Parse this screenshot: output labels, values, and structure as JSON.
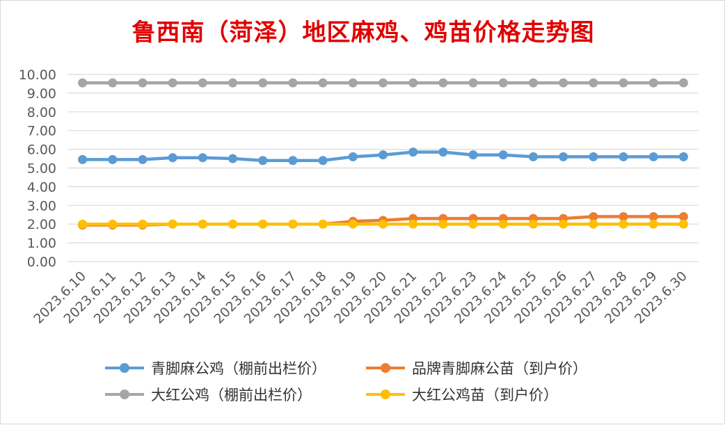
{
  "chart_data": {
    "type": "line",
    "title": "鲁西南（菏泽）地区麻鸡、鸡苗价格走势图",
    "xlabel": "",
    "ylabel": "",
    "ylim": [
      0,
      10
    ],
    "yticks": [
      "0.00",
      "1.00",
      "2.00",
      "3.00",
      "4.00",
      "5.00",
      "6.00",
      "7.00",
      "8.00",
      "9.00",
      "10.00"
    ],
    "grid": true,
    "legend_position": "bottom",
    "categories": [
      "2023.6.10",
      "2023.6.11",
      "2023.6.12",
      "2023.6.13",
      "2023.6.14",
      "2023.6.15",
      "2023.6.16",
      "2023.6.17",
      "2023.6.18",
      "2023.6.19",
      "2023.6.20",
      "2023.6.21",
      "2023.6.22",
      "2023.6.23",
      "2023.6.24",
      "2023.6.25",
      "2023.6.26",
      "2023.6.27",
      "2023.6.28",
      "2023.6.29",
      "2023.6.30"
    ],
    "series": [
      {
        "name": "大红公鸡（棚前出栏价）",
        "color": "#a5a5a5",
        "values": [
          9.55,
          9.55,
          9.55,
          9.55,
          9.55,
          9.55,
          9.55,
          9.55,
          9.55,
          9.55,
          9.55,
          9.55,
          9.55,
          9.55,
          9.55,
          9.55,
          9.55,
          9.55,
          9.55,
          9.55,
          9.55
        ]
      },
      {
        "name": "青脚麻公鸡（棚前出栏价）",
        "color": "#5b9bd5",
        "values": [
          5.45,
          5.45,
          5.45,
          5.55,
          5.55,
          5.5,
          5.4,
          5.4,
          5.4,
          5.6,
          5.7,
          5.85,
          5.85,
          5.7,
          5.7,
          5.6,
          5.6,
          5.6,
          5.6,
          5.6,
          5.6
        ]
      },
      {
        "name": "品牌青脚麻公苗（到户价）",
        "color": "#ed7d31",
        "values": [
          1.95,
          1.95,
          1.95,
          2.0,
          2.0,
          2.0,
          2.0,
          2.0,
          2.0,
          2.15,
          2.2,
          2.3,
          2.3,
          2.3,
          2.3,
          2.3,
          2.3,
          2.4,
          2.4,
          2.4,
          2.4
        ]
      },
      {
        "name": "大红公鸡苗（到户价）",
        "color": "#ffc000",
        "values": [
          2.0,
          2.0,
          2.0,
          2.0,
          2.0,
          2.0,
          2.0,
          2.0,
          2.0,
          2.0,
          2.0,
          2.0,
          2.0,
          2.0,
          2.0,
          2.0,
          2.0,
          2.0,
          2.0,
          2.0,
          2.0
        ]
      }
    ]
  },
  "legend": [
    {
      "label": "青脚麻公鸡（棚前出栏价）",
      "color": "#5b9bd5"
    },
    {
      "label": "品牌青脚麻公苗（到户价）",
      "color": "#ed7d31"
    },
    {
      "label": "大红公鸡（棚前出栏价）",
      "color": "#a5a5a5"
    },
    {
      "label": "大红公鸡苗（到户价）",
      "color": "#ffc000"
    }
  ]
}
